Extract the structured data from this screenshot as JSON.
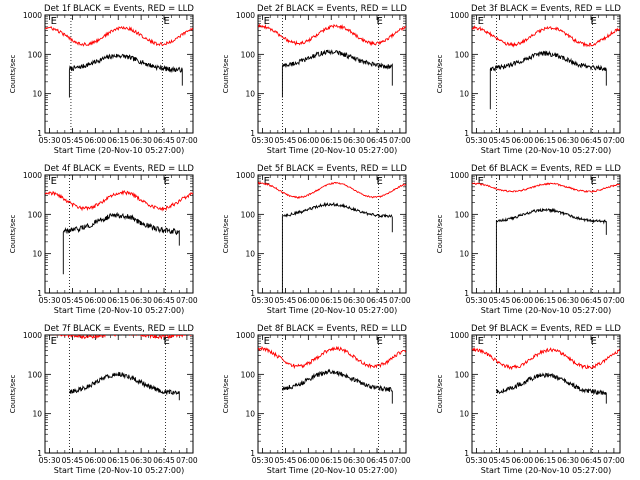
{
  "figure": {
    "background": "#ffffff",
    "event_color": "#000000",
    "lld_color": "#ff0000"
  },
  "chart_data": [
    {
      "type": "line",
      "title": "Det 1f BLACK = Events, RED = LLD",
      "xlabel": "Start Time (20-Nov-10 05:27:00)",
      "ylabel": "Counts/sec",
      "yscale": "log",
      "ylim": [
        1,
        1000
      ],
      "x_ticks": [
        "05:30",
        "05:45",
        "06:00",
        "06:15",
        "06:30",
        "06:45",
        "07:00"
      ],
      "y_ticks": [
        "1",
        "10",
        "100",
        "1000"
      ],
      "e_markers": [
        {
          "label": "E",
          "x": "05:30"
        },
        {
          "label": "E",
          "x": "06:44"
        }
      ],
      "dotted_lines": [
        "05:44",
        "06:44"
      ],
      "series": [
        {
          "name": "Events",
          "color": "#000000",
          "start": "05:43",
          "end": "06:57",
          "base": 40,
          "peak": 92,
          "noise": 0.12,
          "spike": 8,
          "drop": 16
        },
        {
          "name": "LLD",
          "color": "#ff0000",
          "start": "05:27",
          "end": "07:04",
          "base": 180,
          "peak": 470,
          "noise": 0.08
        }
      ]
    },
    {
      "type": "line",
      "title": "Det 2f BLACK = Events, RED = LLD",
      "xlabel": "Start Time (20-Nov-10 05:27:00)",
      "ylabel": "Counts/sec",
      "yscale": "log",
      "ylim": [
        1,
        1000
      ],
      "x_ticks": [
        "05:30",
        "05:45",
        "06:00",
        "06:15",
        "06:30",
        "06:45",
        "07:00"
      ],
      "y_ticks": [
        "1",
        "10",
        "100",
        "1000"
      ],
      "e_markers": [
        {
          "label": "E",
          "x": "05:30"
        },
        {
          "label": "E",
          "x": "06:44"
        }
      ],
      "dotted_lines": [
        "05:43",
        "06:46"
      ],
      "series": [
        {
          "name": "Events",
          "color": "#000000",
          "start": "05:43",
          "end": "06:55",
          "base": 48,
          "peak": 115,
          "noise": 0.12,
          "spike": 8,
          "drop": 16
        },
        {
          "name": "LLD",
          "color": "#ff0000",
          "start": "05:27",
          "end": "07:04",
          "base": 190,
          "peak": 520,
          "noise": 0.08
        }
      ]
    },
    {
      "type": "line",
      "title": "Det 3f BLACK = Events, RED = LLD",
      "xlabel": "Start Time (20-Nov-10 05:27:00)",
      "ylabel": "Counts/sec",
      "yscale": "log",
      "ylim": [
        1,
        1000
      ],
      "x_ticks": [
        "05:30",
        "05:45",
        "06:00",
        "06:15",
        "06:30",
        "06:45",
        "07:00"
      ],
      "y_ticks": [
        "1",
        "10",
        "100",
        "1000"
      ],
      "e_markers": [
        {
          "label": "E",
          "x": "05:30"
        },
        {
          "label": "E",
          "x": "06:44"
        }
      ],
      "dotted_lines": [
        "05:43",
        "06:46"
      ],
      "series": [
        {
          "name": "Events",
          "color": "#000000",
          "start": "05:39",
          "end": "06:55",
          "base": 42,
          "peak": 105,
          "noise": 0.12,
          "spike": 4,
          "drop": 16
        },
        {
          "name": "LLD",
          "color": "#ff0000",
          "start": "05:27",
          "end": "07:04",
          "base": 175,
          "peak": 470,
          "noise": 0.08
        }
      ]
    },
    {
      "type": "line",
      "title": "Det 4f BLACK = Events, RED = LLD",
      "xlabel": "Start Time (20-Nov-10 05:27:00)",
      "ylabel": "Counts/sec",
      "yscale": "log",
      "ylim": [
        1,
        1000
      ],
      "x_ticks": [
        "05:30",
        "05:45",
        "06:00",
        "06:15",
        "06:30",
        "06:45",
        "07:00"
      ],
      "y_ticks": [
        "1",
        "10",
        "100",
        "1000"
      ],
      "e_markers": [
        {
          "label": "E",
          "x": "05:30"
        },
        {
          "label": "E",
          "x": "06:44"
        }
      ],
      "dotted_lines": [
        "05:43",
        "06:46"
      ],
      "series": [
        {
          "name": "Events",
          "color": "#000000",
          "start": "05:39",
          "end": "06:55",
          "base": 35,
          "peak": 95,
          "noise": 0.14,
          "spike": 3,
          "drop": 16
        },
        {
          "name": "LLD",
          "color": "#ff0000",
          "start": "05:27",
          "end": "07:04",
          "base": 140,
          "peak": 360,
          "noise": 0.09
        }
      ]
    },
    {
      "type": "line",
      "title": "Det 5f BLACK = Events, RED = LLD",
      "xlabel": "Start Time (20-Nov-10 05:27:00)",
      "ylabel": "Counts/sec",
      "yscale": "log",
      "ylim": [
        1,
        1000
      ],
      "x_ticks": [
        "05:30",
        "05:45",
        "06:00",
        "06:15",
        "06:30",
        "06:45",
        "07:00"
      ],
      "y_ticks": [
        "1",
        "10",
        "100",
        "1000"
      ],
      "e_markers": [
        {
          "label": "E",
          "x": "05:30"
        },
        {
          "label": "E",
          "x": "06:44"
        }
      ],
      "dotted_lines": [
        "05:43",
        "06:46"
      ],
      "series": [
        {
          "name": "Events",
          "color": "#000000",
          "start": "05:43",
          "end": "06:55",
          "base": 88,
          "peak": 180,
          "noise": 0.07,
          "spike": 1,
          "drop": 35
        },
        {
          "name": "LLD",
          "color": "#ff0000",
          "start": "05:27",
          "end": "07:04",
          "base": 270,
          "peak": 620,
          "noise": 0.04
        }
      ]
    },
    {
      "type": "line",
      "title": "Det 6f BLACK = Events, RED = LLD",
      "xlabel": "Start Time (20-Nov-10 05:27:00)",
      "ylabel": "Counts/sec",
      "yscale": "log",
      "ylim": [
        1,
        1000
      ],
      "x_ticks": [
        "05:30",
        "05:45",
        "06:00",
        "06:15",
        "06:30",
        "06:45",
        "07:00"
      ],
      "y_ticks": [
        "1",
        "10",
        "100",
        "1000"
      ],
      "e_markers": [
        {
          "label": "E",
          "x": "05:30"
        },
        {
          "label": "E",
          "x": "06:44"
        }
      ],
      "dotted_lines": [
        "05:43",
        "06:46"
      ],
      "series": [
        {
          "name": "Events",
          "color": "#000000",
          "start": "05:43",
          "end": "06:55",
          "base": 65,
          "peak": 130,
          "noise": 0.07,
          "spike": 1,
          "drop": 30
        },
        {
          "name": "LLD",
          "color": "#ff0000",
          "start": "05:27",
          "end": "07:04",
          "base": 380,
          "peak": 600,
          "noise": 0.04
        }
      ]
    },
    {
      "type": "line",
      "title": "Det 7f BLACK = Events, RED = LLD",
      "xlabel": "Start Time (20-Nov-10 05:27:00)",
      "ylabel": "Counts/sec",
      "yscale": "log",
      "ylim": [
        1,
        1000
      ],
      "x_ticks": [
        "05:30",
        "05:45",
        "06:00",
        "06:15",
        "06:30",
        "06:45",
        "07:00"
      ],
      "y_ticks": [
        "1",
        "10",
        "100",
        "1000"
      ],
      "e_markers": [
        {
          "label": "E",
          "x": "05:30"
        },
        {
          "label": "E",
          "x": "06:44"
        }
      ],
      "dotted_lines": [
        "05:43",
        "06:46"
      ],
      "series": [
        {
          "name": "Events",
          "color": "#000000",
          "start": "05:43",
          "end": "06:55",
          "base": 33,
          "peak": 100,
          "noise": 0.12,
          "spike": null,
          "drop": 22
        },
        {
          "name": "LLD",
          "color": "#ff0000",
          "start": "05:27",
          "end": "07:04",
          "base": 900,
          "peak": 1100,
          "noise": 0.09
        }
      ]
    },
    {
      "type": "line",
      "title": "Det 8f BLACK = Events, RED = LLD",
      "xlabel": "Start Time (20-Nov-10 05:27:00)",
      "ylabel": "Counts/sec",
      "yscale": "log",
      "ylim": [
        1,
        1000
      ],
      "x_ticks": [
        "05:30",
        "05:45",
        "06:00",
        "06:15",
        "06:30",
        "06:45",
        "07:00"
      ],
      "y_ticks": [
        "1",
        "10",
        "100",
        "1000"
      ],
      "e_markers": [
        {
          "label": "E",
          "x": "05:30"
        },
        {
          "label": "E",
          "x": "06:44"
        }
      ],
      "dotted_lines": [
        "05:43",
        "06:46"
      ],
      "series": [
        {
          "name": "Events",
          "color": "#000000",
          "start": "05:43",
          "end": "06:55",
          "base": 40,
          "peak": 115,
          "noise": 0.12,
          "spike": null,
          "drop": 18
        },
        {
          "name": "LLD",
          "color": "#ff0000",
          "start": "05:27",
          "end": "07:04",
          "base": 160,
          "peak": 450,
          "noise": 0.09
        }
      ]
    },
    {
      "type": "line",
      "title": "Det 9f BLACK = Events, RED = LLD",
      "xlabel": "Start Time (20-Nov-10 05:27:00)",
      "ylabel": "Counts/sec",
      "yscale": "log",
      "ylim": [
        1,
        1000
      ],
      "x_ticks": [
        "05:30",
        "05:45",
        "06:00",
        "06:15",
        "06:30",
        "06:45",
        "07:00"
      ],
      "y_ticks": [
        "1",
        "10",
        "100",
        "1000"
      ],
      "e_markers": [
        {
          "label": "E",
          "x": "05:30"
        },
        {
          "label": "E",
          "x": "06:44"
        }
      ],
      "dotted_lines": [
        "05:43",
        "06:46"
      ],
      "series": [
        {
          "name": "Events",
          "color": "#000000",
          "start": "05:43",
          "end": "06:55",
          "base": 33,
          "peak": 95,
          "noise": 0.12,
          "spike": null,
          "drop": 18
        },
        {
          "name": "LLD",
          "color": "#ff0000",
          "start": "05:27",
          "end": "07:04",
          "base": 150,
          "peak": 420,
          "noise": 0.09
        }
      ]
    }
  ]
}
